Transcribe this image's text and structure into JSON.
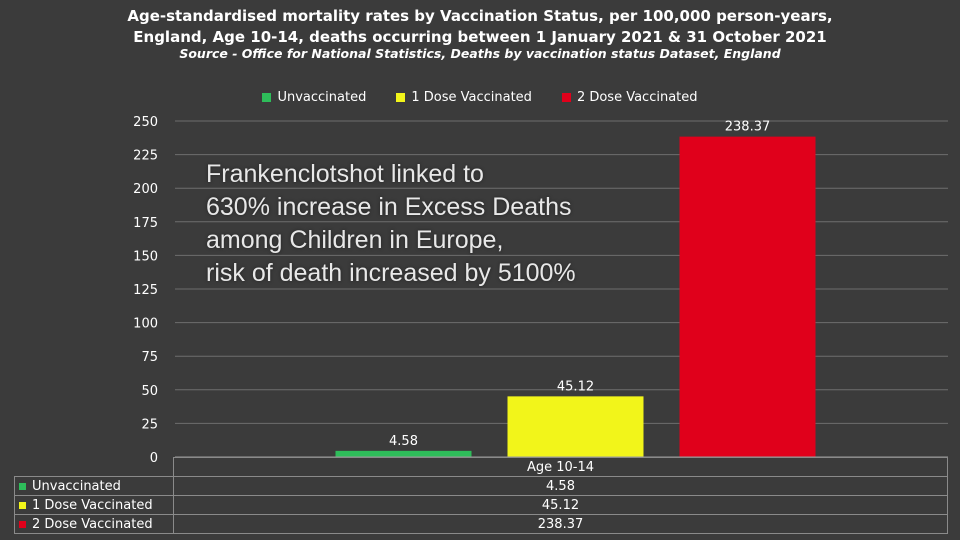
{
  "title_line1": "Age-standardised mortality rates by Vaccination Status, per 100,000 person-years,",
  "title_line2": "England, Age 10-14, deaths occurring between 1 January 2021 & 31 October 2021",
  "source": "Source - Office for National Statistics, Deaths by vaccination status Dataset, England",
  "overlay_text": [
    "Frankenclotshot linked to",
    "630% increase in Excess Deaths",
    "among Children in Europe,",
    "risk of death increased by 5100%"
  ],
  "chart_data": {
    "type": "bar",
    "categories": [
      "Age 10-14"
    ],
    "series": [
      {
        "name": "Unvaccinated",
        "values": [
          4.58
        ],
        "color": "#2ebd5a",
        "label": "4.58"
      },
      {
        "name": "1 Dose Vaccinated",
        "values": [
          45.12
        ],
        "color": "#f2f51a",
        "label": "45.12"
      },
      {
        "name": "2 Dose Vaccinated",
        "values": [
          238.37
        ],
        "color": "#e0001b",
        "label": "238.37"
      }
    ],
    "ylim": [
      0,
      250
    ],
    "yticks": [
      0,
      25,
      50,
      75,
      100,
      125,
      150,
      175,
      200,
      225,
      250
    ],
    "grid": true,
    "legend": "top"
  },
  "table": {
    "header": "Age 10-14",
    "rows": [
      {
        "label": "Unvaccinated",
        "value": "4.58",
        "color": "#2ebd5a"
      },
      {
        "label": "1 Dose Vaccinated",
        "value": "45.12",
        "color": "#f2f51a"
      },
      {
        "label": "2 Dose Vaccinated",
        "value": "238.37",
        "color": "#e0001b"
      }
    ]
  }
}
